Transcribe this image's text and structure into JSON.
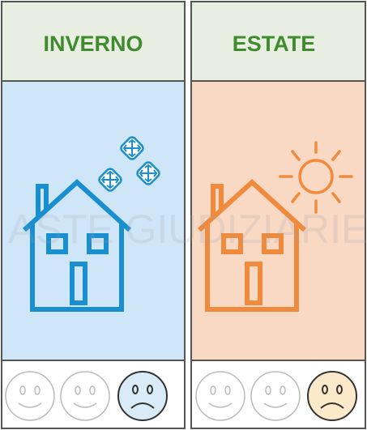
{
  "panels": [
    {
      "title": "INVERNO"
    },
    {
      "title": "ESTATE"
    }
  ],
  "watermark": "ASTE GIUDIZIARIE"
}
